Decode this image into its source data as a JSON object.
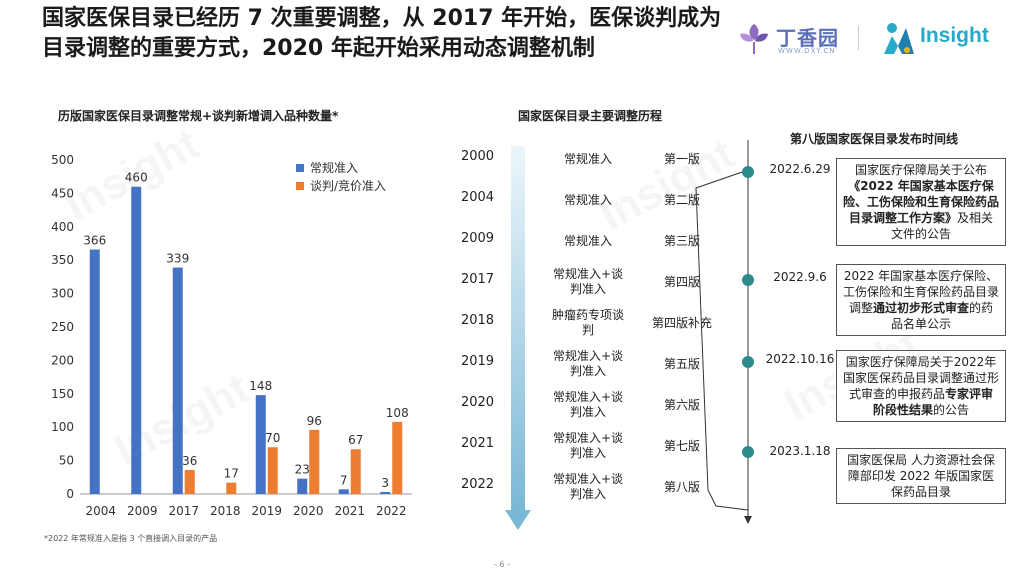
{
  "headline": "国家医保目录已经历 7 次重要调整，从 2017 年开始，医保谈判成为目录调整的重要方式，2020 年起开始采用动态调整机制",
  "logos": {
    "dxy_name": "丁香园",
    "dxy_url": "WWW.DXY.CN",
    "insight_name": "Insight"
  },
  "watermark_text": "Insight",
  "chart_data": {
    "type": "bar",
    "title": "历版国家医保目录调整常规+谈判新增调入品种数量*",
    "categories": [
      "2004",
      "2009",
      "2017",
      "2018",
      "2019",
      "2020",
      "2021",
      "2022"
    ],
    "series": [
      {
        "name": "常规准入",
        "values": [
          366,
          460,
          339,
          null,
          148,
          23,
          7,
          3
        ],
        "color": "#4472c4"
      },
      {
        "name": "谈判/竞价准入",
        "values": [
          null,
          null,
          36,
          17,
          70,
          96,
          67,
          108
        ],
        "color": "#ed7d31"
      }
    ],
    "yticks": [
      0,
      50,
      100,
      150,
      200,
      250,
      300,
      350,
      400,
      450,
      500
    ],
    "ylim": [
      0,
      500
    ],
    "grid": false,
    "legend": "top-right"
  },
  "footnote": "*2022 年常规准入是指 3 个直接调入目录的产品",
  "page_number": "- 6 -",
  "timeline": {
    "title": "国家医保目录主要调整历程",
    "rows": [
      {
        "year": "2000",
        "type": "常规准入",
        "version": "第一版"
      },
      {
        "year": "2004",
        "type": "常规准入",
        "version": "第二版"
      },
      {
        "year": "2009",
        "type": "常规准入",
        "version": "第三版"
      },
      {
        "year": "2017",
        "type": "常规准入+谈判准入",
        "version": "第四版"
      },
      {
        "year": "2018",
        "type": "肿瘤药专项谈判",
        "version": "第四版补充"
      },
      {
        "year": "2019",
        "type": "常规准入+谈判准入",
        "version": "第五版"
      },
      {
        "year": "2020",
        "type": "常规准入+谈判准入",
        "version": "第六版"
      },
      {
        "year": "2021",
        "type": "常规准入+谈判准入",
        "version": "第七版"
      },
      {
        "year": "2022",
        "type": "常规准入+谈判准入",
        "version": "第八版"
      }
    ]
  },
  "release": {
    "title": "第八版国家医保目录发布时间线",
    "events": [
      {
        "date": "2022.6.29",
        "text_parts": [
          {
            "t": "国家医疗保障局关于公布",
            "b": false
          },
          {
            "t": "《2022 年国家基本医疗保险、工伤保险和生育保险药品目录调整工作方案》",
            "b": true
          },
          {
            "t": "及相关文件的公告",
            "b": false
          }
        ]
      },
      {
        "date": "2022.9.6",
        "text_parts": [
          {
            "t": "2022 年国家基本医疗保险、工伤保险和生育保险药品目录调整",
            "b": false
          },
          {
            "t": "通过初步形式审查",
            "b": true
          },
          {
            "t": "的药品名单公示",
            "b": false
          }
        ]
      },
      {
        "date": "2022.10.16",
        "text_parts": [
          {
            "t": "国家医疗保障局关于2022年国家医保药品目录调整通过形式审查的申报药品",
            "b": false
          },
          {
            "t": "专家评审阶段性结果",
            "b": true
          },
          {
            "t": "的公告",
            "b": false
          }
        ]
      },
      {
        "date": "2023.1.18",
        "text_parts": [
          {
            "t": "国家医保局 人力资源社会保障部印发 2022 年版国家医保药品目录",
            "b": false
          }
        ]
      }
    ]
  }
}
